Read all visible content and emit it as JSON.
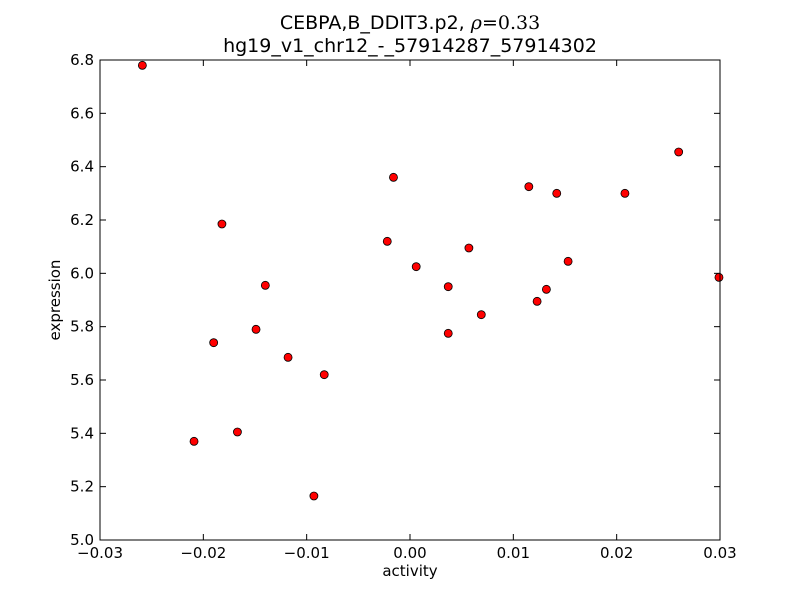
{
  "chart_data": {
    "type": "scatter",
    "title_line1_prefix": "CEBPA,B_DDIT3.p2, ",
    "title_rho_symbol": "ρ",
    "title_rho_eq": "=0.33",
    "title_line2": "hg19_v1_chr12_-_57914287_57914302",
    "xlabel": "activity",
    "ylabel": "expression",
    "xlim": [
      -0.03,
      0.03
    ],
    "ylim": [
      5.0,
      6.8
    ],
    "xticks": [
      -0.03,
      -0.02,
      -0.01,
      0.0,
      0.01,
      0.02,
      0.03
    ],
    "xtick_labels": [
      "−0.03",
      "−0.02",
      "−0.01",
      "0.00",
      "0.01",
      "0.02",
      "0.03"
    ],
    "yticks": [
      5.0,
      5.2,
      5.4,
      5.6,
      5.8,
      6.0,
      6.2,
      6.4,
      6.6,
      6.8
    ],
    "ytick_labels": [
      "5.0",
      "5.2",
      "5.4",
      "5.6",
      "5.8",
      "6.0",
      "6.2",
      "6.4",
      "6.6",
      "6.8"
    ],
    "grid": false,
    "marker_color": "#ff0000",
    "marker_edge_color": "#000000",
    "points": [
      {
        "x": -0.0259,
        "y": 6.78
      },
      {
        "x": -0.0209,
        "y": 5.37
      },
      {
        "x": -0.019,
        "y": 5.74
      },
      {
        "x": -0.0182,
        "y": 6.185
      },
      {
        "x": -0.0167,
        "y": 5.405
      },
      {
        "x": -0.0149,
        "y": 5.79
      },
      {
        "x": -0.014,
        "y": 5.955
      },
      {
        "x": -0.0118,
        "y": 5.685
      },
      {
        "x": -0.0093,
        "y": 5.165
      },
      {
        "x": -0.0083,
        "y": 5.62
      },
      {
        "x": -0.0022,
        "y": 6.12
      },
      {
        "x": -0.0016,
        "y": 6.36
      },
      {
        "x": 0.0006,
        "y": 6.025
      },
      {
        "x": 0.0037,
        "y": 5.95
      },
      {
        "x": 0.0037,
        "y": 5.775
      },
      {
        "x": 0.0057,
        "y": 6.095
      },
      {
        "x": 0.0069,
        "y": 5.845
      },
      {
        "x": 0.0115,
        "y": 6.325
      },
      {
        "x": 0.0123,
        "y": 5.895
      },
      {
        "x": 0.0132,
        "y": 5.94
      },
      {
        "x": 0.0142,
        "y": 6.3
      },
      {
        "x": 0.0153,
        "y": 6.045
      },
      {
        "x": 0.0208,
        "y": 6.3
      },
      {
        "x": 0.026,
        "y": 6.455
      },
      {
        "x": 0.0299,
        "y": 5.985
      }
    ]
  }
}
